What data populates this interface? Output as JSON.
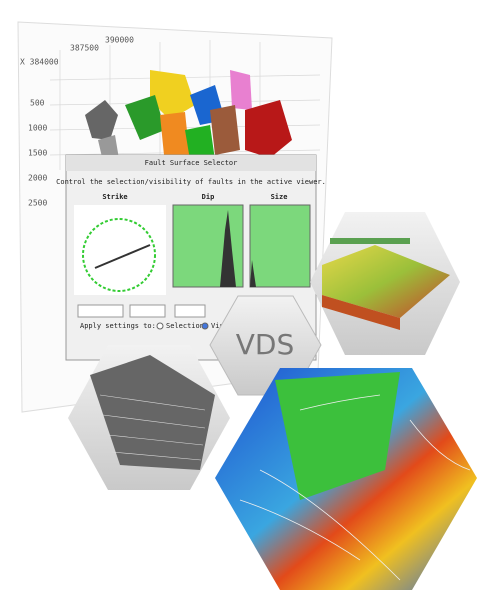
{
  "viewer": {
    "corner_label": "X 384000",
    "x_labels": [
      "387500",
      "390000"
    ],
    "y_labels": [
      "500",
      "1000",
      "1500",
      "2000",
      "2500"
    ]
  },
  "dialog": {
    "title": "Fault Surface Selector",
    "instruction": "Control the selection/visibility of faults in the active viewer.",
    "panels": [
      "Strike",
      "Dip",
      "Size"
    ],
    "apply_label": "Apply settings to:",
    "options": [
      "Selection",
      "Visibility"
    ]
  },
  "badge": "VDS"
}
